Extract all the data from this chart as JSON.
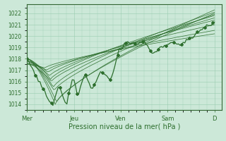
{
  "xlabel": "Pression niveau de la mer( hPa )",
  "bg_color": "#cce8d8",
  "grid_color": "#99ccb0",
  "line_color": "#2d6e2d",
  "ylim": [
    1013.5,
    1022.8
  ],
  "xlim": [
    0.0,
    4.15
  ],
  "yticks": [
    1014,
    1015,
    1016,
    1017,
    1018,
    1019,
    1020,
    1021,
    1022
  ],
  "xtick_labels": [
    "Mer",
    "Jeu",
    "Ven",
    "Sam",
    "D"
  ],
  "xtick_pos": [
    0.0,
    1.0,
    2.0,
    3.0,
    4.0
  ],
  "figsize": [
    3.2,
    2.0
  ],
  "dpi": 100
}
